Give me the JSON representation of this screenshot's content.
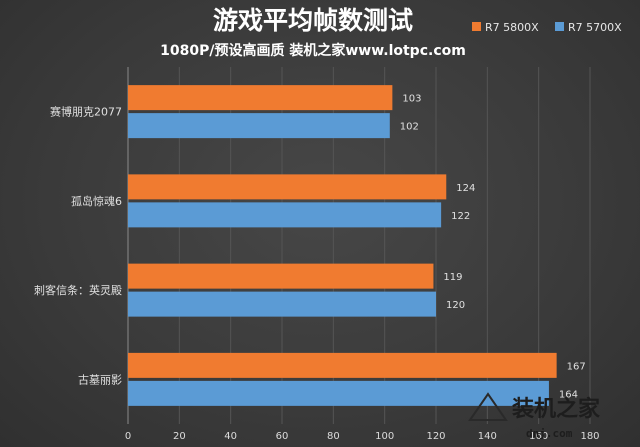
{
  "chart_data": {
    "type": "bar",
    "orientation": "horizontal",
    "title": "游戏平均帧数测试",
    "subtitle": "1080P/预设高画质 装机之家www.lotpc.com",
    "categories": [
      "赛博朋克2077",
      "孤岛惊魂6",
      "刺客信条：英灵殿",
      "古墓丽影"
    ],
    "series": [
      {
        "name": "R7 5800X",
        "color": "#f07b30",
        "values": [
          103,
          124,
          119,
          167
        ]
      },
      {
        "name": "R7 5700X",
        "color": "#5b9bd5",
        "values": [
          102,
          122,
          120,
          164
        ]
      }
    ],
    "xlim": [
      0,
      180
    ],
    "xticks": [
      0,
      20,
      40,
      60,
      80,
      100,
      120,
      140,
      160,
      180
    ],
    "grid": true,
    "legend_position": "top-right"
  },
  "watermark": {
    "text": "装机之家",
    "sub": "dnj.com"
  }
}
